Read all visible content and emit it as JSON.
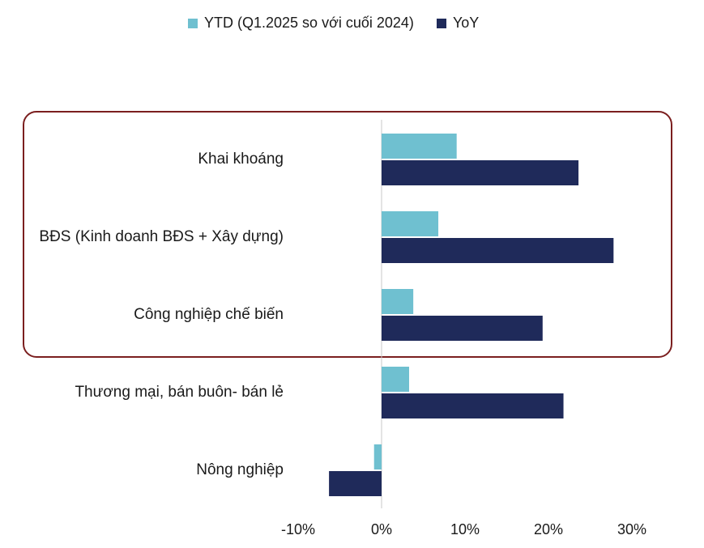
{
  "chart_data": {
    "type": "bar",
    "orientation": "horizontal",
    "categories": [
      "Khai khoáng",
      "BĐS (Kinh doanh BĐS + Xây dựng)",
      "Công nghiệp chế biến",
      "Thương mại, bán buôn- bán lẻ",
      "Nông nghiệp"
    ],
    "series": [
      {
        "name": "YTD (Q1.2025 so với cuối 2024)",
        "values": [
          9.0,
          6.8,
          3.8,
          3.3,
          -0.9
        ]
      },
      {
        "name": "YoY",
        "values": [
          23.6,
          27.8,
          19.3,
          21.8,
          -6.3
        ]
      }
    ],
    "xlim": [
      -10,
      30
    ],
    "xticks": [
      "-10%",
      "0%",
      "10%",
      "20%",
      "30%"
    ],
    "highlighted_categories": [
      0,
      1,
      2
    ],
    "legend_placement": "top",
    "grid": false,
    "colors": {
      "ytd": "#6fc0d0",
      "yoy": "#1f2a5a",
      "highlight_border": "#7b1f1f"
    }
  }
}
